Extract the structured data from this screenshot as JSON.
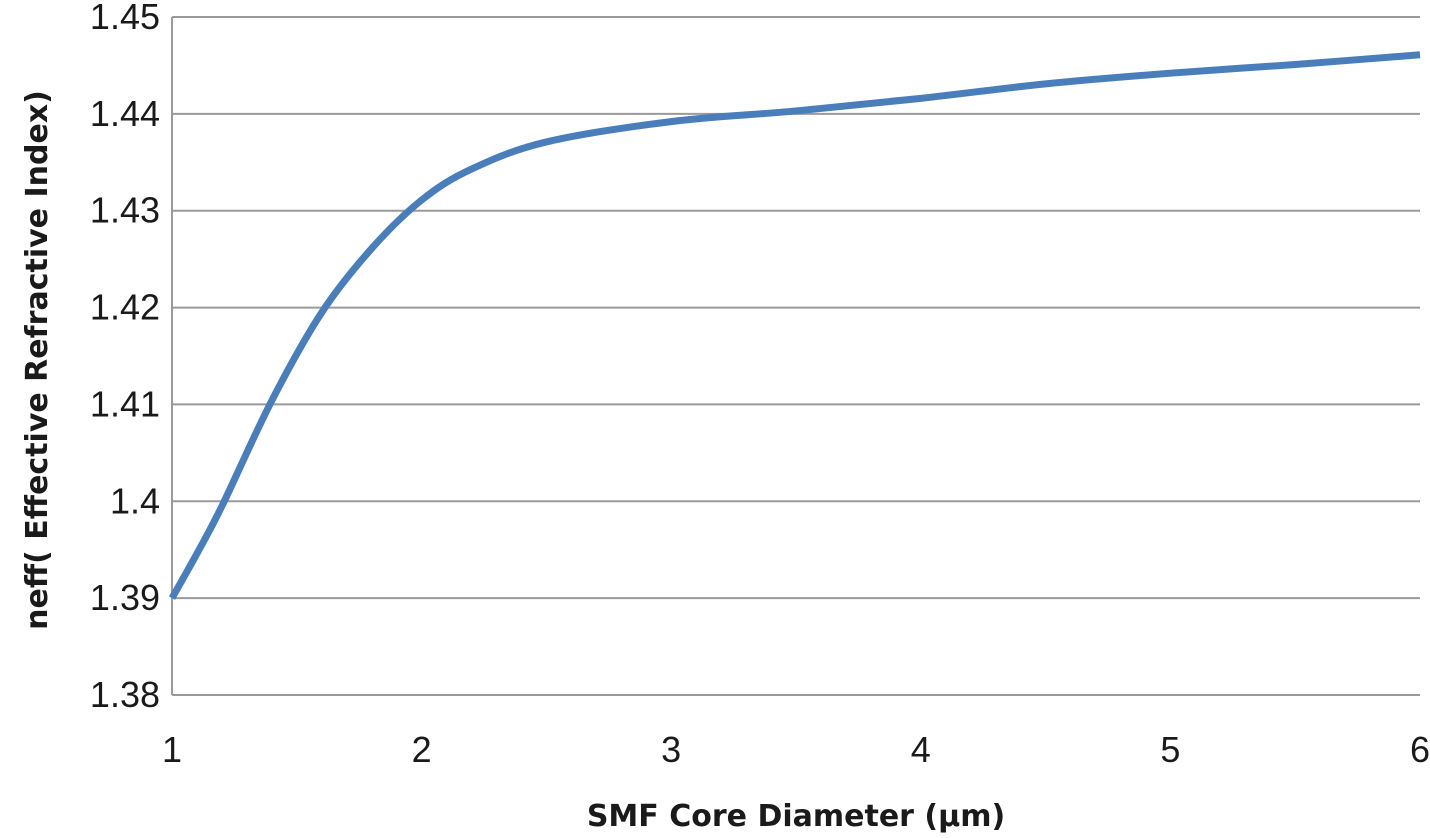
{
  "chart_data": {
    "type": "line",
    "title": "",
    "xlabel": "SMF Core Diameter (μm)",
    "ylabel": "neff( Effective Refractive Index)",
    "xlim": [
      1,
      6
    ],
    "ylim": [
      1.38,
      1.45
    ],
    "x_ticks": [
      "1",
      "2",
      "3",
      "4",
      "5",
      "6"
    ],
    "y_ticks": [
      "1.38",
      "1.39",
      "1.4",
      "1.41",
      "1.42",
      "1.43",
      "1.44",
      "1.45"
    ],
    "grid": "horizontal",
    "series": [
      {
        "color": "#4a7ebb",
        "x": [
          1.0,
          1.1,
          1.2,
          1.4,
          1.6,
          1.8,
          2.0,
          2.2,
          2.5,
          3.0,
          3.5,
          4.0,
          4.5,
          5.0,
          5.5,
          6.0
        ],
        "y": [
          1.39,
          1.3946,
          1.3995,
          1.4104,
          1.4195,
          1.4261,
          1.4311,
          1.4343,
          1.4371,
          1.4392,
          1.4403,
          1.4416,
          1.4431,
          1.4442,
          1.4451,
          1.4461
        ]
      }
    ]
  }
}
